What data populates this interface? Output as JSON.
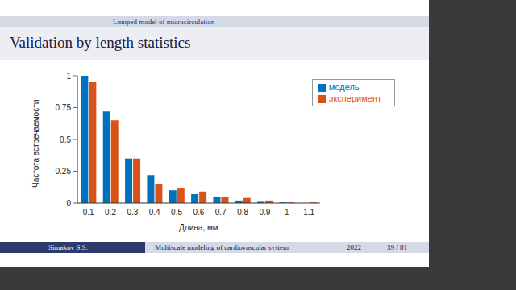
{
  "chart_data": {
    "type": "bar",
    "title": "Validation by length statistics",
    "subtitle": "Lumped model of microcirculation",
    "annotations": [
      "Simakov S.S.",
      "Multiscale modeling of cardiovascular system",
      "2022",
      "39 / 81"
    ],
    "x_label": "Длина, мм",
    "y_label": "Частота встречаемости",
    "categories": [
      "0.1",
      "0.2",
      "0.3",
      "0.4",
      "0.5",
      "0.6",
      "0.7",
      "0.8",
      "0.9",
      "1",
      "1.1"
    ],
    "series": [
      {
        "name": "модель",
        "color": "#0072bd",
        "values": [
          1.0,
          0.72,
          0.35,
          0.22,
          0.1,
          0.07,
          0.05,
          0.02,
          0.01,
          0.005,
          0.0
        ]
      },
      {
        "name": "эксперимент",
        "color": "#d95319",
        "values": [
          0.95,
          0.65,
          0.35,
          0.15,
          0.12,
          0.09,
          0.05,
          0.04,
          0.02,
          0.005,
          0.005
        ]
      }
    ],
    "ylim": [
      0,
      1
    ],
    "yticks": [
      0,
      0.25,
      0.5,
      0.75,
      1
    ],
    "grid": false,
    "legend": "upper right"
  }
}
